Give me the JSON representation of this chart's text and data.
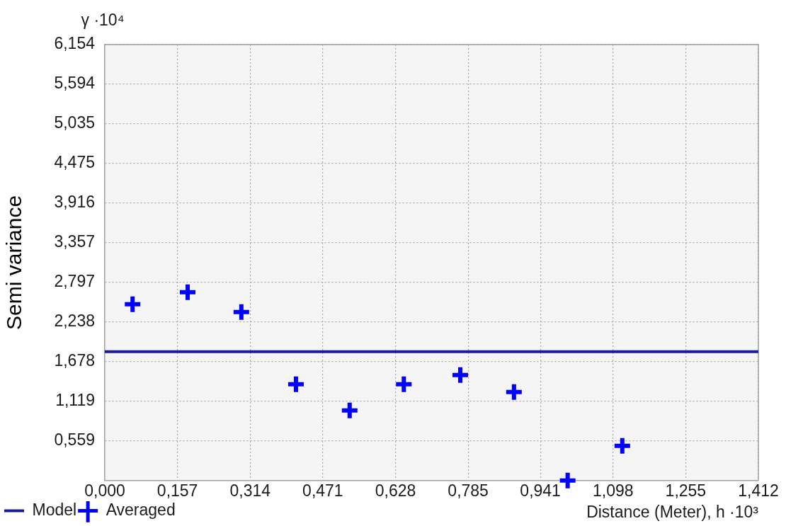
{
  "chart_data": {
    "type": "scatter",
    "annotations": [
      "γ ·10⁴"
    ],
    "xlabel": "Distance (Meter), h ·10³",
    "ylabel": "Semi variance",
    "xlim": [
      0,
      1.412
    ],
    "ylim": [
      0,
      6.154
    ],
    "xticks": [
      {
        "value": 0,
        "label": "0,000"
      },
      {
        "value": 0.157,
        "label": "0,157"
      },
      {
        "value": 0.314,
        "label": "0,314"
      },
      {
        "value": 0.471,
        "label": "0,471"
      },
      {
        "value": 0.628,
        "label": "0,628"
      },
      {
        "value": 0.785,
        "label": "0,785"
      },
      {
        "value": 0.941,
        "label": "0,941"
      },
      {
        "value": 1.098,
        "label": "1,098"
      },
      {
        "value": 1.255,
        "label": "1,255"
      },
      {
        "value": 1.412,
        "label": "1,412"
      }
    ],
    "yticks": [
      {
        "value": 0.559,
        "label": "0,559"
      },
      {
        "value": 1.119,
        "label": "1,119"
      },
      {
        "value": 1.678,
        "label": "1,678"
      },
      {
        "value": 2.238,
        "label": "2,238"
      },
      {
        "value": 2.797,
        "label": "2,797"
      },
      {
        "value": 3.357,
        "label": "3,357"
      },
      {
        "value": 3.916,
        "label": "3,916"
      },
      {
        "value": 4.475,
        "label": "4,475"
      },
      {
        "value": 5.035,
        "label": "5,035"
      },
      {
        "value": 5.594,
        "label": "5,594"
      },
      {
        "value": 6.154,
        "label": "6,154"
      }
    ],
    "series": [
      {
        "name": "Model",
        "type": "line",
        "color": "#1a1a9c",
        "x": [
          0,
          1.412
        ],
        "values": [
          1.82,
          1.82
        ]
      },
      {
        "name": "Averaged",
        "color": "#0000ff",
        "marker": "cross",
        "x": [
          0.06,
          0.179,
          0.295,
          0.413,
          0.529,
          0.646,
          0.768,
          0.884,
          1.0,
          1.118
        ],
        "values": [
          2.49,
          2.66,
          2.38,
          1.36,
          0.99,
          1.36,
          1.49,
          1.25,
          0,
          0.49
        ]
      }
    ],
    "grid": true,
    "legend": "bottom left"
  }
}
